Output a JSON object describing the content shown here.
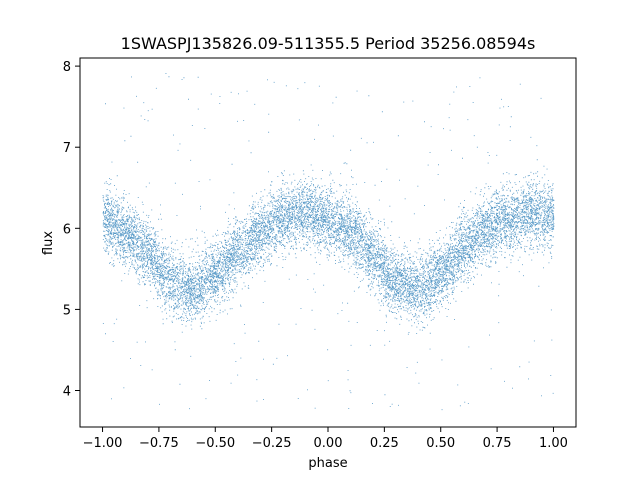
{
  "chart_data": {
    "type": "scatter",
    "title": "1SWASPJ135826.09-511355.5 Period 35256.08594s",
    "xlabel": "phase",
    "ylabel": "flux",
    "xlim": [
      -1.1,
      1.1
    ],
    "ylim": [
      3.55,
      8.1
    ],
    "xticks": [
      -1.0,
      -0.75,
      -0.5,
      -0.25,
      0.0,
      0.25,
      0.5,
      0.75,
      1.0
    ],
    "xtick_labels": [
      "−1.00",
      "−0.75",
      "−0.50",
      "−0.25",
      "0.00",
      "0.25",
      "0.50",
      "0.75",
      "1.00"
    ],
    "yticks": [
      4,
      5,
      6,
      7,
      8
    ],
    "ytick_labels": [
      "4",
      "5",
      "6",
      "7",
      "8"
    ],
    "grid": false,
    "marker_color": "#1f77b4",
    "series": [
      {
        "trend": {
          "x": [
            -1.0,
            -0.9,
            -0.8,
            -0.7,
            -0.6,
            -0.5,
            -0.4,
            -0.3,
            -0.2,
            -0.1,
            0.0,
            0.1,
            0.2,
            0.3,
            0.4,
            0.5,
            0.6,
            0.7,
            0.8,
            0.9,
            1.0
          ],
          "y": [
            6.1,
            5.95,
            5.7,
            5.35,
            5.25,
            5.45,
            5.7,
            5.95,
            6.15,
            6.2,
            6.1,
            5.95,
            5.65,
            5.35,
            5.25,
            5.45,
            5.75,
            6.0,
            6.15,
            6.2,
            6.15
          ]
        },
        "scatter_sigma": 0.2,
        "outlier_range": [
          3.75,
          7.95
        ],
        "point_count": 12000
      }
    ]
  }
}
